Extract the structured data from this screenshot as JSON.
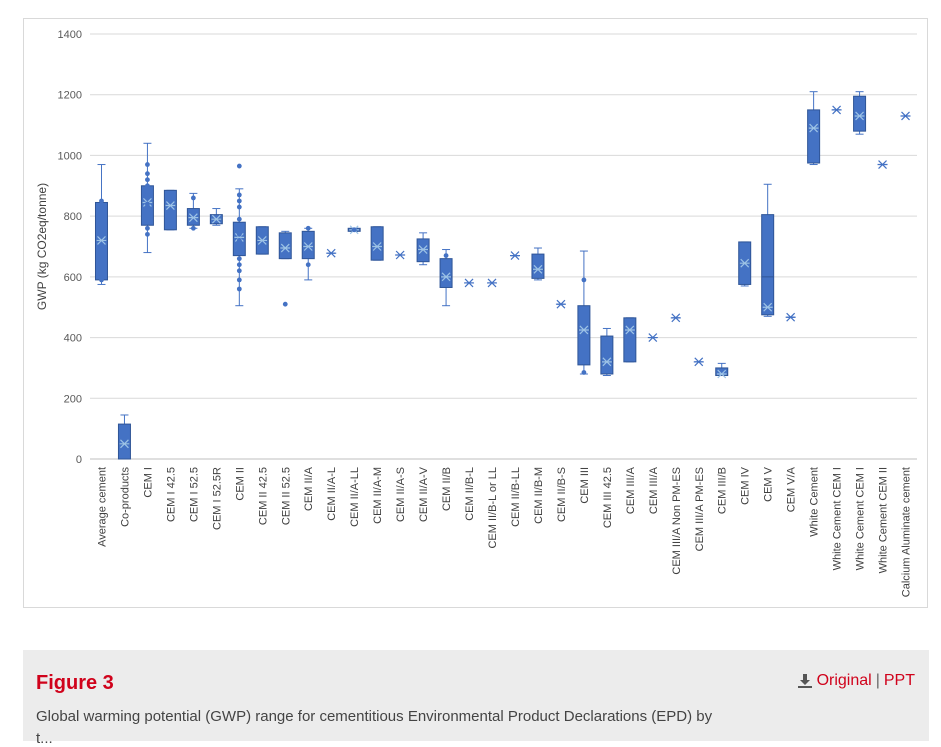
{
  "chart_data": {
    "type": "box",
    "title": "",
    "xlabel": "",
    "ylabel": "GWP (kg CO2eq/tonne)",
    "ylim": [
      0,
      1400
    ],
    "yticks": [
      0,
      200,
      400,
      600,
      800,
      1000,
      1200,
      1400
    ],
    "grid": true,
    "legend": "none",
    "color": "#4472c4",
    "categories": [
      {
        "label": "Average cement",
        "min": 575,
        "q1": 590,
        "median": 720,
        "mean": 720,
        "q3": 845,
        "max": 970,
        "outliers": [
          850,
          590
        ]
      },
      {
        "label": "Co-products",
        "min": 0,
        "q1": 0,
        "median": 50,
        "mean": 50,
        "q3": 115,
        "max": 145,
        "outliers": []
      },
      {
        "label": "CEM I",
        "min": 680,
        "q1": 770,
        "median": 845,
        "mean": 845,
        "q3": 900,
        "max": 1040,
        "outliers": [
          970,
          940,
          920,
          900,
          870,
          840,
          810,
          790,
          760,
          740
        ]
      },
      {
        "label": "CEM I 42.5",
        "min": 755,
        "q1": 755,
        "median": 835,
        "mean": 835,
        "q3": 885,
        "max": 885,
        "outliers": []
      },
      {
        "label": "CEM I 52.5",
        "min": 760,
        "q1": 770,
        "median": 795,
        "mean": 795,
        "q3": 825,
        "max": 875,
        "outliers": [
          860,
          760
        ]
      },
      {
        "label": "CEM I 52.5R",
        "min": 770,
        "q1": 775,
        "median": 790,
        "mean": 790,
        "q3": 805,
        "max": 825,
        "outliers": []
      },
      {
        "label": "CEM II",
        "min": 505,
        "q1": 670,
        "median": 730,
        "mean": 730,
        "q3": 780,
        "max": 890,
        "outliers": [
          965,
          870,
          850,
          830,
          790,
          770,
          740,
          720,
          700,
          680,
          660,
          640,
          620,
          590,
          560
        ]
      },
      {
        "label": "CEM II 42.5",
        "min": 675,
        "q1": 675,
        "median": 720,
        "mean": 720,
        "q3": 765,
        "max": 765,
        "outliers": []
      },
      {
        "label": "CEM II 52.5",
        "min": 660,
        "q1": 660,
        "median": 695,
        "mean": 695,
        "q3": 745,
        "max": 750,
        "outliers": [
          510
        ]
      },
      {
        "label": "CEM II/A",
        "min": 590,
        "q1": 660,
        "median": 700,
        "mean": 700,
        "q3": 750,
        "max": 760,
        "outliers": [
          760,
          680,
          640
        ]
      },
      {
        "label": "CEM II/A-L",
        "min": 678,
        "q1": 678,
        "median": 678,
        "mean": 678,
        "q3": 678,
        "max": 678,
        "outliers": []
      },
      {
        "label": "CEM II/A-LL",
        "min": 750,
        "q1": 750,
        "median": 755,
        "mean": 755,
        "q3": 760,
        "max": 760,
        "outliers": [
          755
        ]
      },
      {
        "label": "CEM II/A-M",
        "min": 655,
        "q1": 655,
        "median": 700,
        "mean": 700,
        "q3": 765,
        "max": 765,
        "outliers": []
      },
      {
        "label": "CEM II/A-S",
        "min": 672,
        "q1": 672,
        "median": 672,
        "mean": 672,
        "q3": 672,
        "max": 672,
        "outliers": []
      },
      {
        "label": "CEM II/A-V",
        "min": 640,
        "q1": 650,
        "median": 690,
        "mean": 690,
        "q3": 725,
        "max": 745,
        "outliers": []
      },
      {
        "label": "CEM II/B",
        "min": 505,
        "q1": 565,
        "median": 600,
        "mean": 600,
        "q3": 660,
        "max": 690,
        "outliers": [
          670,
          630
        ]
      },
      {
        "label": "CEM II/B-L",
        "min": 580,
        "q1": 580,
        "median": 580,
        "mean": 580,
        "q3": 580,
        "max": 580,
        "outliers": []
      },
      {
        "label": "CEM II/B-L or LL",
        "min": 580,
        "q1": 580,
        "median": 580,
        "mean": 580,
        "q3": 580,
        "max": 580,
        "outliers": []
      },
      {
        "label": "CEM II/B-LL",
        "min": 670,
        "q1": 670,
        "median": 670,
        "mean": 670,
        "q3": 670,
        "max": 670,
        "outliers": []
      },
      {
        "label": "CEM II/B-M",
        "min": 590,
        "q1": 595,
        "median": 625,
        "mean": 625,
        "q3": 675,
        "max": 695,
        "outliers": []
      },
      {
        "label": "CEM II/B-S",
        "min": 510,
        "q1": 510,
        "median": 510,
        "mean": 510,
        "q3": 510,
        "max": 510,
        "outliers": []
      },
      {
        "label": "CEM III",
        "min": 280,
        "q1": 310,
        "median": 425,
        "mean": 425,
        "q3": 505,
        "max": 685,
        "outliers": [
          590,
          285
        ]
      },
      {
        "label": "CEM III 42.5",
        "min": 275,
        "q1": 280,
        "median": 320,
        "mean": 320,
        "q3": 405,
        "max": 430,
        "outliers": []
      },
      {
        "label": "CEM III/A",
        "min": 320,
        "q1": 320,
        "median": 425,
        "mean": 425,
        "q3": 465,
        "max": 465,
        "outliers": []
      },
      {
        "label": "CEM III/A",
        "min": 400,
        "q1": 400,
        "median": 400,
        "mean": 400,
        "q3": 400,
        "max": 400,
        "outliers": []
      },
      {
        "label": "CEM III/A Non PM-ES",
        "min": 465,
        "q1": 465,
        "median": 465,
        "mean": 465,
        "q3": 465,
        "max": 465,
        "outliers": []
      },
      {
        "label": "CEM III/A PM-ES",
        "min": 320,
        "q1": 320,
        "median": 320,
        "mean": 320,
        "q3": 320,
        "max": 320,
        "outliers": []
      },
      {
        "label": "CEM III/B",
        "min": 275,
        "q1": 275,
        "median": 280,
        "mean": 280,
        "q3": 300,
        "max": 315,
        "outliers": []
      },
      {
        "label": "CEM IV",
        "min": 570,
        "q1": 575,
        "median": 645,
        "mean": 645,
        "q3": 715,
        "max": 715,
        "outliers": []
      },
      {
        "label": "CEM V",
        "min": 470,
        "q1": 475,
        "median": 600,
        "mean": 500,
        "q3": 805,
        "max": 905,
        "outliers": []
      },
      {
        "label": "CEM V/A",
        "min": 467,
        "q1": 467,
        "median": 467,
        "mean": 467,
        "q3": 467,
        "max": 467,
        "outliers": []
      },
      {
        "label": "White Cement",
        "min": 970,
        "q1": 975,
        "median": 1090,
        "mean": 1090,
        "q3": 1150,
        "max": 1210,
        "outliers": []
      },
      {
        "label": "White Cement CEM I",
        "min": 1150,
        "q1": 1150,
        "median": 1150,
        "mean": 1150,
        "q3": 1150,
        "max": 1150,
        "outliers": []
      },
      {
        "label": "White Cement CEM I",
        "min": 1070,
        "q1": 1080,
        "median": 1130,
        "mean": 1130,
        "q3": 1195,
        "max": 1210,
        "outliers": []
      },
      {
        "label": "White Cement CEM II",
        "min": 970,
        "q1": 970,
        "median": 970,
        "mean": 970,
        "q3": 970,
        "max": 970,
        "outliers": []
      },
      {
        "label": "Calcium Aluminate cement",
        "min": 1130,
        "q1": 1130,
        "median": 1130,
        "mean": 1130,
        "q3": 1130,
        "max": 1130,
        "outliers": []
      }
    ]
  },
  "caption": {
    "figure_label": "Figure 3",
    "original_link": "Original",
    "separator": "|",
    "ppt_link": "PPT",
    "download_icon": "download-icon",
    "description": "Global warming potential (GWP) range for cementitious Environmental Product Declarations (EPD) by",
    "description_cont": "t..."
  }
}
